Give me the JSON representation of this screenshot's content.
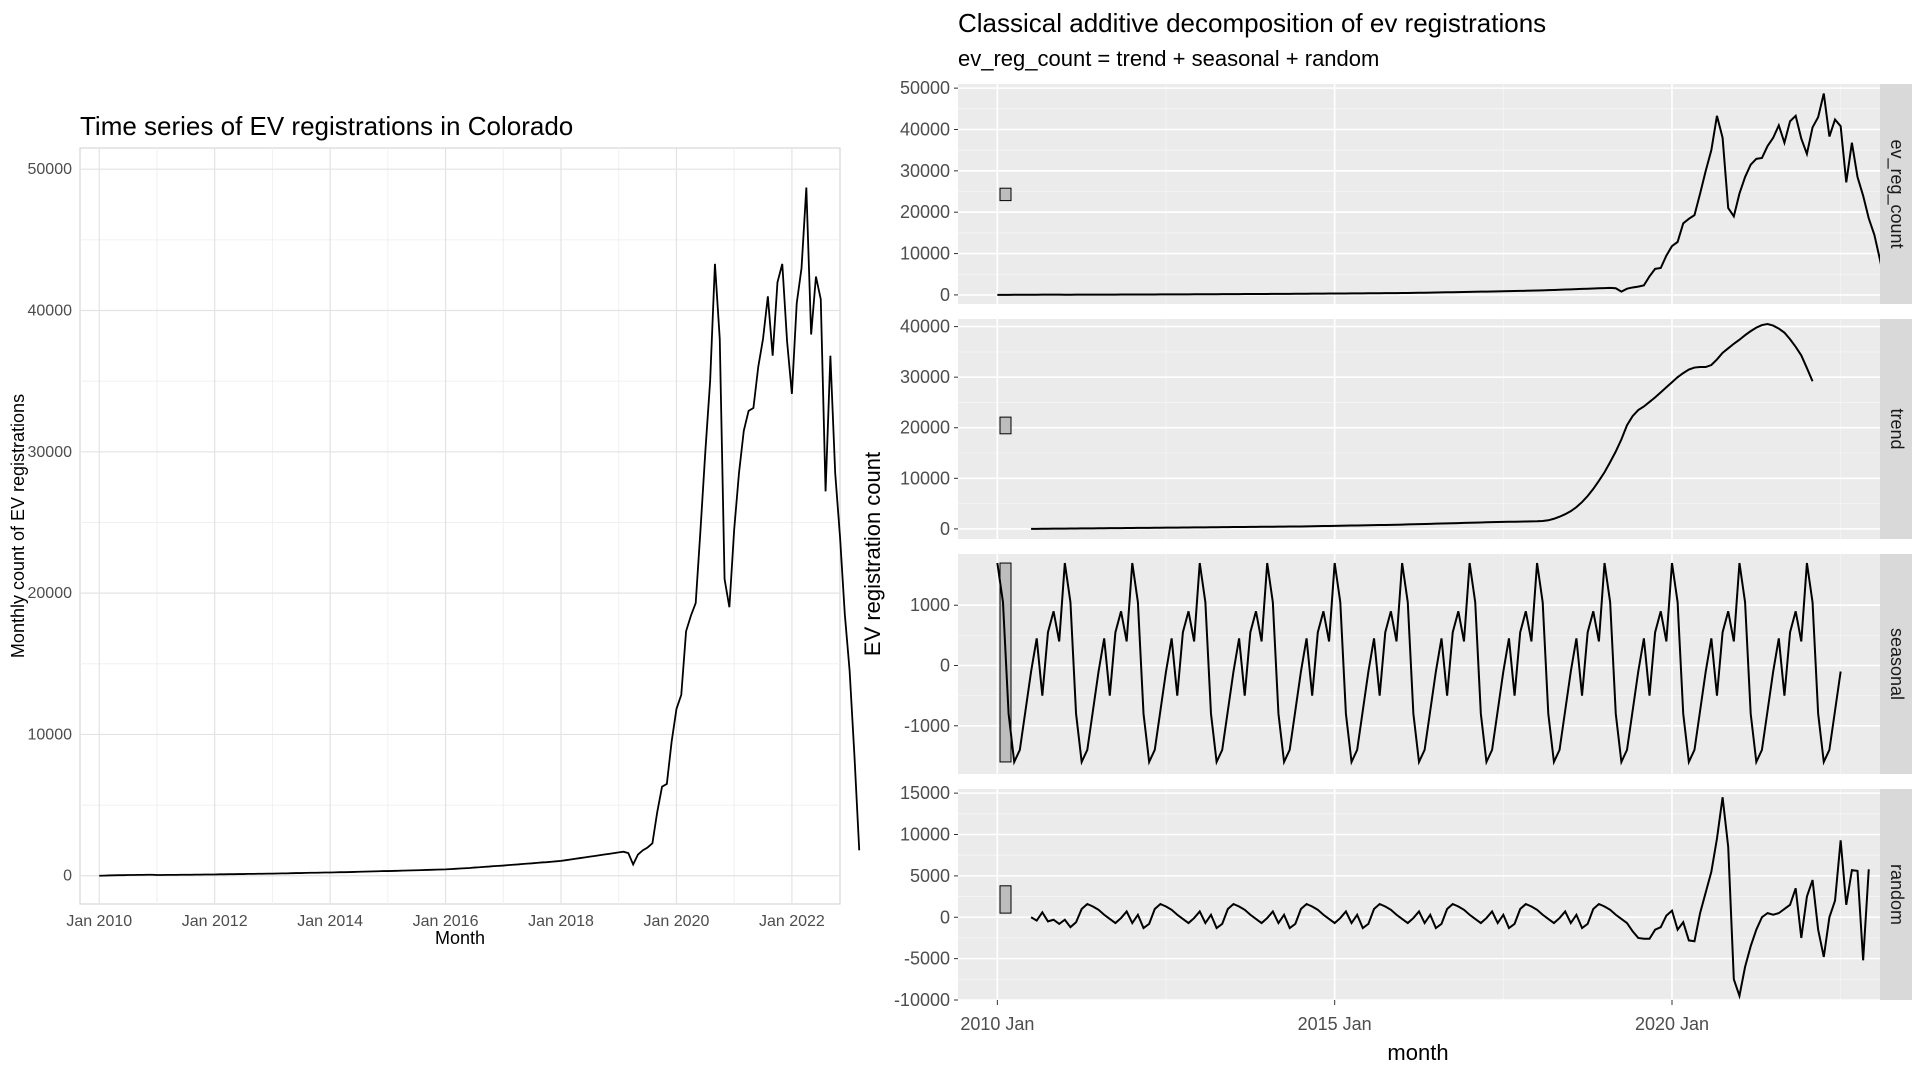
{
  "chart_data": [
    {
      "type": "line",
      "title": "Time series of EV registrations in Colorado",
      "xlabel": "Month",
      "ylabel": "Monthly count of EV registrations",
      "x_tick_labels": [
        "Jan 2010",
        "Jan 2012",
        "Jan 2014",
        "Jan 2016",
        "Jan 2018",
        "Jan 2020",
        "Jan 2022"
      ],
      "y_tick_labels": [
        "0",
        "10000",
        "20000",
        "30000",
        "40000",
        "50000"
      ],
      "ylim": [
        -2000,
        51500
      ],
      "grid": true,
      "series": [
        {
          "values": [
            0,
            10,
            20,
            30,
            40,
            40,
            50,
            50,
            60,
            60,
            70,
            70,
            50,
            50,
            60,
            60,
            60,
            70,
            70,
            70,
            80,
            80,
            90,
            90,
            90,
            100,
            100,
            110,
            110,
            120,
            120,
            130,
            130,
            140,
            140,
            150,
            150,
            160,
            170,
            170,
            180,
            190,
            190,
            200,
            210,
            210,
            220,
            230,
            230,
            240,
            250,
            250,
            260,
            270,
            280,
            290,
            300,
            310,
            320,
            330,
            330,
            340,
            350,
            360,
            370,
            380,
            390,
            400,
            410,
            420,
            430,
            440,
            450,
            470,
            490,
            510,
            530,
            550,
            580,
            600,
            630,
            650,
            680,
            700,
            720,
            750,
            780,
            800,
            830,
            860,
            880,
            910,
            940,
            960,
            990,
            1020,
            1050,
            1100,
            1150,
            1200,
            1250,
            1300,
            1350,
            1400,
            1450,
            1500,
            1550,
            1600,
            1650,
            1700,
            1600,
            800,
            1500,
            1800,
            2000,
            2300,
            4500,
            6300,
            6500,
            9500,
            11800,
            12800,
            17300,
            18400,
            19300,
            24500,
            30000,
            35000,
            43300,
            38000,
            21000,
            19000,
            24500,
            28500,
            31500,
            32900,
            33100,
            36000,
            38000,
            41000,
            36800,
            42000,
            43300,
            37800,
            34100,
            40500,
            43000,
            48700,
            38300,
            42400,
            40800,
            27200,
            36800,
            28500,
            24000,
            18500,
            14500,
            8500,
            1800
          ]
        }
      ]
    },
    {
      "type": "line",
      "title": "Classical additive decomposition of ev registrations",
      "subtitle": "ev_reg_count = trend + seasonal + random",
      "xlabel": "month",
      "ylabel": "EV registration count",
      "x_tick_labels": [
        "2010 Jan",
        "2015 Jan",
        "2020 Jan"
      ],
      "panels": [
        {
          "name": "ev_reg_count",
          "y_tick_labels": [
            "0",
            "10000",
            "20000",
            "30000",
            "40000",
            "50000"
          ],
          "ylim": [
            -2200,
            51000
          ],
          "scale_bar": [
            22800,
            25800
          ],
          "start_index": 0,
          "values": [
            0,
            10,
            20,
            30,
            40,
            40,
            50,
            50,
            60,
            60,
            70,
            70,
            50,
            50,
            60,
            60,
            60,
            70,
            70,
            70,
            80,
            80,
            90,
            90,
            90,
            100,
            100,
            110,
            110,
            120,
            120,
            130,
            130,
            140,
            140,
            150,
            150,
            160,
            170,
            170,
            180,
            190,
            190,
            200,
            210,
            210,
            220,
            230,
            230,
            240,
            250,
            250,
            260,
            270,
            280,
            290,
            300,
            310,
            320,
            330,
            330,
            340,
            350,
            360,
            370,
            380,
            390,
            400,
            410,
            420,
            430,
            440,
            450,
            470,
            490,
            510,
            530,
            550,
            580,
            600,
            630,
            650,
            680,
            700,
            720,
            750,
            780,
            800,
            830,
            860,
            880,
            910,
            940,
            960,
            990,
            1020,
            1050,
            1100,
            1150,
            1200,
            1250,
            1300,
            1350,
            1400,
            1450,
            1500,
            1550,
            1600,
            1650,
            1700,
            1600,
            800,
            1500,
            1800,
            2000,
            2300,
            4500,
            6300,
            6500,
            9500,
            11800,
            12800,
            17300,
            18400,
            19300,
            24500,
            30000,
            35000,
            43300,
            38000,
            21000,
            19000,
            24500,
            28500,
            31500,
            32900,
            33100,
            36000,
            38000,
            41000,
            36800,
            42000,
            43300,
            37800,
            34100,
            40500,
            43000,
            48700,
            38300,
            42400,
            40800,
            27200,
            36800,
            28500,
            24000,
            18500,
            14500,
            8500,
            1800
          ]
        },
        {
          "name": "trend",
          "y_tick_labels": [
            "0",
            "10000",
            "20000",
            "30000",
            "40000"
          ],
          "ylim": [
            -2000,
            41500
          ],
          "scale_bar": [
            18800,
            22100
          ],
          "start_index": 6,
          "values": [
            0,
            10,
            20,
            30,
            40,
            50,
            60,
            70,
            80,
            90,
            100,
            110,
            120,
            130,
            140,
            150,
            160,
            170,
            180,
            190,
            200,
            210,
            220,
            230,
            240,
            250,
            260,
            270,
            280,
            290,
            300,
            310,
            320,
            330,
            340,
            350,
            360,
            370,
            380,
            390,
            400,
            410,
            420,
            430,
            440,
            450,
            460,
            470,
            480,
            500,
            520,
            540,
            560,
            580,
            600,
            620,
            640,
            660,
            680,
            700,
            720,
            740,
            760,
            780,
            800,
            820,
            850,
            880,
            910,
            940,
            970,
            1000,
            1030,
            1060,
            1090,
            1120,
            1150,
            1180,
            1210,
            1240,
            1270,
            1300,
            1330,
            1360,
            1380,
            1400,
            1420,
            1440,
            1460,
            1480,
            1500,
            1550,
            1700,
            2000,
            2400,
            2900,
            3500,
            4300,
            5300,
            6500,
            7900,
            9500,
            11200,
            13200,
            15300,
            17700,
            20500,
            22300,
            23500,
            24200,
            25100,
            26000,
            27000,
            28000,
            29000,
            30000,
            30800,
            31500,
            31900,
            32000,
            32000,
            32400,
            33500,
            34800,
            35700,
            36600,
            37400,
            38300,
            39100,
            39800,
            40300,
            40500,
            40200,
            39600,
            38800,
            37500,
            36000,
            34300,
            31800,
            29200
          ]
        },
        {
          "name": "seasonal",
          "y_tick_labels": [
            "-1000",
            "0",
            "1000"
          ],
          "ylim": [
            -1800,
            1850
          ],
          "scale_bar": [
            -1600,
            1700
          ],
          "start_index": 0,
          "pattern": [
            1700,
            1050,
            -800,
            -1600,
            -1400,
            -750,
            -100,
            450,
            -500,
            550,
            900,
            400
          ],
          "months": 151
        },
        {
          "name": "random",
          "y_tick_labels": [
            "-10000",
            "-5000",
            "0",
            "5000",
            "10000",
            "15000"
          ],
          "ylim": [
            -10000,
            15500
          ],
          "scale_bar": [
            500,
            3800
          ],
          "start_index": 6,
          "values": [
            0,
            -400,
            600,
            -500,
            -300,
            -800,
            -300,
            -1200,
            -600,
            1000,
            1600,
            1300,
            900,
            300,
            -200,
            -700,
            -100,
            700,
            -700,
            300,
            -1300,
            -800,
            1000,
            1600,
            1300,
            900,
            300,
            -200,
            -700,
            -100,
            700,
            -700,
            300,
            -1300,
            -800,
            1000,
            1600,
            1300,
            900,
            300,
            -200,
            -700,
            -100,
            700,
            -700,
            300,
            -1300,
            -800,
            1000,
            1600,
            1300,
            900,
            300,
            -200,
            -700,
            -100,
            700,
            -700,
            300,
            -1300,
            -800,
            1000,
            1600,
            1300,
            900,
            300,
            -200,
            -700,
            -100,
            700,
            -700,
            300,
            -1300,
            -800,
            1000,
            1600,
            1300,
            900,
            300,
            -200,
            -700,
            -100,
            700,
            -700,
            300,
            -1300,
            -800,
            1000,
            1600,
            1300,
            900,
            300,
            -200,
            -700,
            -100,
            700,
            -700,
            300,
            -1300,
            -800,
            1000,
            1600,
            1300,
            900,
            300,
            -200,
            -700,
            -1700,
            -2500,
            -2600,
            -2600,
            -1500,
            -1200,
            200,
            800,
            -1500,
            -600,
            -2800,
            -2900,
            500,
            3000,
            5500,
            9500,
            14500,
            8500,
            -7500,
            -9500,
            -6000,
            -3500,
            -1500,
            0,
            500,
            300,
            500,
            1000,
            1500,
            3500,
            -2500,
            2500,
            4500,
            -1500,
            -4800,
            0,
            2000,
            9300,
            1500,
            5700,
            5600,
            -5200,
            5800
          ]
        }
      ]
    }
  ]
}
